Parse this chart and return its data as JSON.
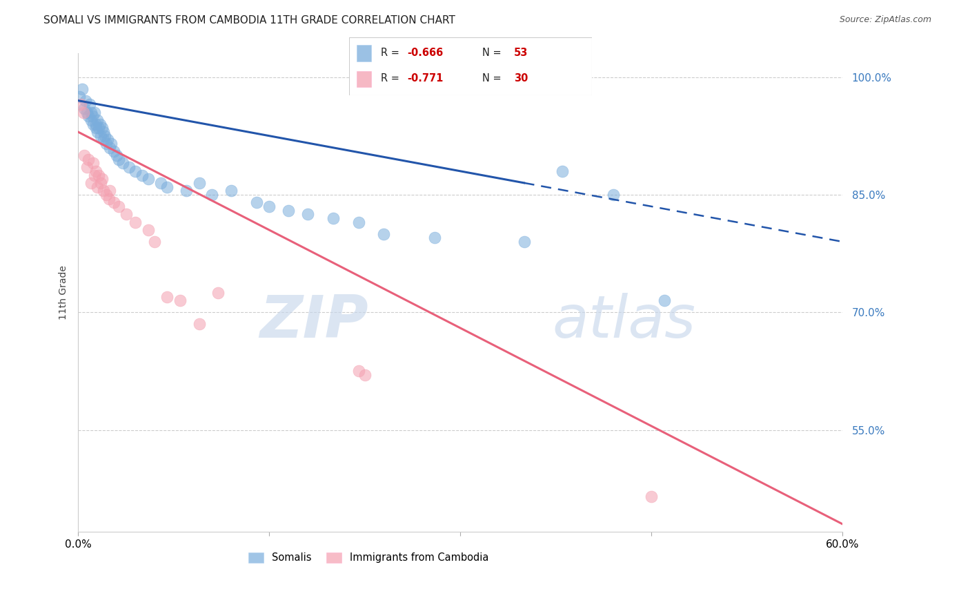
{
  "title": "SOMALI VS IMMIGRANTS FROM CAMBODIA 11TH GRADE CORRELATION CHART",
  "source": "Source: ZipAtlas.com",
  "ylabel": "11th Grade",
  "blue_color": "#7aaddc",
  "pink_color": "#f4a0b0",
  "trend_blue_color": "#2255aa",
  "trend_pink_color": "#e8607a",
  "watermark_zip": "ZIP",
  "watermark_atlas": "atlas",
  "blue_points_x": [
    0.1,
    0.3,
    0.5,
    0.6,
    0.7,
    0.8,
    0.9,
    1.0,
    1.0,
    1.1,
    1.2,
    1.3,
    1.4,
    1.4,
    1.5,
    1.5,
    1.6,
    1.7,
    1.8,
    1.9,
    2.0,
    2.0,
    2.1,
    2.2,
    2.3,
    2.5,
    2.6,
    2.8,
    3.0,
    3.2,
    3.5,
    4.0,
    4.5,
    5.0,
    5.5,
    6.5,
    7.0,
    8.5,
    9.5,
    10.5,
    12.0,
    14.0,
    15.0,
    16.5,
    18.0,
    20.0,
    22.0,
    24.0,
    28.0,
    35.0,
    38.0,
    42.0,
    46.0
  ],
  "blue_points_y": [
    97.5,
    98.5,
    96.0,
    97.0,
    95.5,
    95.0,
    96.5,
    95.5,
    94.5,
    95.0,
    94.0,
    95.5,
    93.5,
    94.0,
    94.5,
    93.0,
    93.5,
    94.0,
    92.5,
    93.5,
    93.0,
    92.0,
    92.5,
    91.5,
    92.0,
    91.0,
    91.5,
    90.5,
    90.0,
    89.5,
    89.0,
    88.5,
    88.0,
    87.5,
    87.0,
    86.5,
    86.0,
    85.5,
    86.5,
    85.0,
    85.5,
    84.0,
    83.5,
    83.0,
    82.5,
    82.0,
    81.5,
    80.0,
    79.5,
    79.0,
    88.0,
    85.0,
    71.5
  ],
  "pink_points_x": [
    0.2,
    0.4,
    0.5,
    0.7,
    0.8,
    1.0,
    1.2,
    1.3,
    1.4,
    1.5,
    1.6,
    1.8,
    1.9,
    2.0,
    2.2,
    2.4,
    2.5,
    2.8,
    3.2,
    3.8,
    4.5,
    5.5,
    6.0,
    7.0,
    8.0,
    9.5,
    11.0,
    22.0,
    22.5,
    45.0
  ],
  "pink_points_y": [
    96.5,
    95.5,
    90.0,
    88.5,
    89.5,
    86.5,
    89.0,
    87.5,
    88.0,
    86.0,
    87.5,
    86.5,
    87.0,
    85.5,
    85.0,
    84.5,
    85.5,
    84.0,
    83.5,
    82.5,
    81.5,
    80.5,
    79.0,
    72.0,
    71.5,
    68.5,
    72.5,
    62.5,
    62.0,
    46.5
  ],
  "xmin": 0.0,
  "xmax": 60.0,
  "ymin": 42.0,
  "ymax": 103.0,
  "ytick_positions": [
    55.0,
    70.0,
    85.0,
    100.0
  ],
  "ytick_labels": [
    "55.0%",
    "70.0%",
    "85.0%",
    "100.0%"
  ],
  "xtick_positions": [
    0.0,
    15.0,
    30.0,
    45.0,
    60.0
  ],
  "xtick_labels": [
    "0.0%",
    "",
    "",
    "",
    "60.0%"
  ],
  "grid_color": "#cccccc",
  "bg_color": "#ffffff",
  "title_fontsize": 11,
  "blue_trend_x0": 0.0,
  "blue_trend_y0": 97.0,
  "blue_trend_x1": 60.0,
  "blue_trend_y1": 79.0,
  "blue_solid_end_x": 35.0,
  "pink_trend_x0": 0.0,
  "pink_trend_y0": 93.0,
  "pink_trend_x1": 60.0,
  "pink_trend_y1": 43.0
}
